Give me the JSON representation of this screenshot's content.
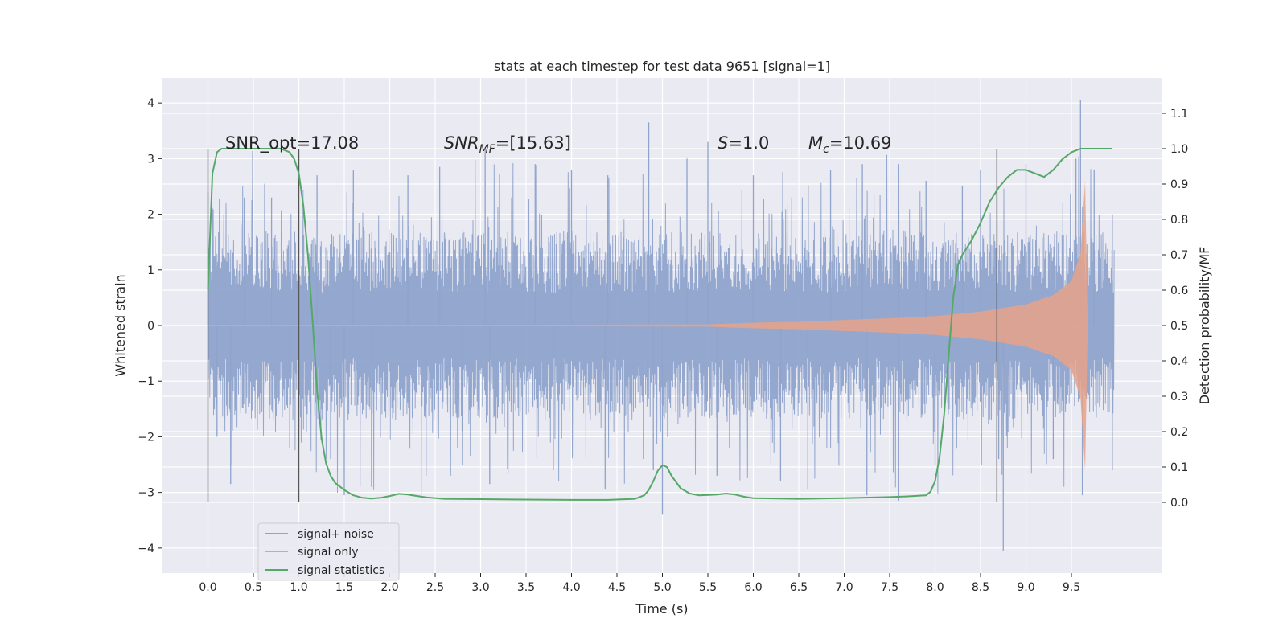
{
  "chart_data": {
    "type": "line",
    "title": "stats at each timestep for test data 9651 [signal=1]",
    "xlabel": "Time (s)",
    "ylabel": "Whitened strain",
    "y2label": "Detection probability/MF",
    "xlim": [
      -0.5,
      10.5
    ],
    "ylim": [
      -4.45,
      4.45
    ],
    "y2lim": [
      -0.2,
      1.2
    ],
    "xticks": [
      0.0,
      0.5,
      1.0,
      1.5,
      2.0,
      2.5,
      3.0,
      3.5,
      4.0,
      4.5,
      5.0,
      5.5,
      6.0,
      6.5,
      7.0,
      7.5,
      8.0,
      8.5,
      9.0,
      9.5
    ],
    "xtick_labels": [
      "0.0",
      "0.5",
      "1.0",
      "1.5",
      "2.0",
      "2.5",
      "3.0",
      "3.5",
      "4.0",
      "4.5",
      "5.0",
      "5.5",
      "6.0",
      "6.5",
      "7.0",
      "7.5",
      "8.0",
      "8.5",
      "9.0",
      "9.5"
    ],
    "yticks": [
      4,
      3,
      2,
      1,
      0,
      -1,
      -2,
      -3,
      -4
    ],
    "ytick_labels": [
      "4",
      "3",
      "2",
      "1",
      "0",
      "−1",
      "−2",
      "−3",
      "−4"
    ],
    "y2ticks": [
      1.1,
      1.0,
      0.9,
      0.8,
      0.7,
      0.6,
      0.5,
      0.4,
      0.3,
      0.2,
      0.1,
      0.0
    ],
    "y2tick_labels": [
      "1.1",
      "1.0",
      "0.9",
      "0.8",
      "0.7",
      "0.6",
      "0.5",
      "0.4",
      "0.3",
      "0.2",
      "0.1",
      "0.0"
    ],
    "grid": true,
    "legend_placement": "lower-left",
    "annotations": {
      "snr_opt": "SNR_opt=17.08",
      "snr_mf_base": "SNR",
      "snr_mf_sub": "MF",
      "snr_mf_value": "=[15.63]",
      "s_symbol": "S",
      "s_value": "=1.0",
      "mc_symbol": "M",
      "mc_sub": "c",
      "mc_value": "=10.69"
    },
    "vertical_markers": [
      {
        "x": 0.0,
        "y2_range": [
          0.0,
          1.0
        ]
      },
      {
        "x": 1.0,
        "y2_range": [
          0.0,
          1.0
        ]
      },
      {
        "x": 8.68,
        "y2_range": [
          0.0,
          1.0
        ]
      }
    ],
    "series": [
      {
        "name": "signal+ noise",
        "color": "#8fa3cb",
        "axis": "left",
        "x_range": [
          0.0,
          9.97
        ],
        "band": [
          -1.3,
          1.3
        ],
        "spikes": [
          {
            "x": 0.0,
            "y": 2.4
          },
          {
            "x": 0.1,
            "y": -2.0
          },
          {
            "x": 0.25,
            "y": -2.85
          },
          {
            "x": 0.4,
            "y": 2.3
          },
          {
            "x": 0.7,
            "y": 2.3
          },
          {
            "x": 0.9,
            "y": -2.2
          },
          {
            "x": 1.2,
            "y": 2.7
          },
          {
            "x": 1.35,
            "y": -2.4
          },
          {
            "x": 1.5,
            "y": -3.05
          },
          {
            "x": 1.6,
            "y": 2.8
          },
          {
            "x": 1.8,
            "y": -2.9
          },
          {
            "x": 2.2,
            "y": 2.7
          },
          {
            "x": 2.4,
            "y": -2.7
          },
          {
            "x": 2.55,
            "y": 2.85
          },
          {
            "x": 2.8,
            "y": -2.5
          },
          {
            "x": 3.05,
            "y": 3.2
          },
          {
            "x": 3.1,
            "y": -2.85
          },
          {
            "x": 3.6,
            "y": 2.9
          },
          {
            "x": 3.8,
            "y": -2.6
          },
          {
            "x": 4.0,
            "y": 2.8
          },
          {
            "x": 4.37,
            "y": -2.95
          },
          {
            "x": 4.4,
            "y": 2.7
          },
          {
            "x": 4.85,
            "y": 3.65
          },
          {
            "x": 4.9,
            "y": -2.6
          },
          {
            "x": 5.0,
            "y": -3.4
          },
          {
            "x": 5.27,
            "y": 3.0
          },
          {
            "x": 5.5,
            "y": 3.3
          },
          {
            "x": 5.6,
            "y": -2.7
          },
          {
            "x": 6.0,
            "y": 2.7
          },
          {
            "x": 6.3,
            "y": -2.8
          },
          {
            "x": 6.6,
            "y": -2.95
          },
          {
            "x": 6.85,
            "y": 2.8
          },
          {
            "x": 7.2,
            "y": 2.9
          },
          {
            "x": 7.25,
            "y": -3.05
          },
          {
            "x": 7.6,
            "y": 2.9
          },
          {
            "x": 7.6,
            "y": -3.15
          },
          {
            "x": 7.9,
            "y": 2.6
          },
          {
            "x": 8.0,
            "y": -2.5
          },
          {
            "x": 8.3,
            "y": 2.5
          },
          {
            "x": 8.5,
            "y": 2.8
          },
          {
            "x": 8.7,
            "y": -2.4
          },
          {
            "x": 8.75,
            "y": -4.05
          },
          {
            "x": 9.0,
            "y": 2.9
          },
          {
            "x": 9.3,
            "y": -2.4
          },
          {
            "x": 9.55,
            "y": 3.0
          },
          {
            "x": 9.6,
            "y": 4.05
          },
          {
            "x": 9.62,
            "y": -3.05
          },
          {
            "x": 9.75,
            "y": 2.8
          },
          {
            "x": 9.95,
            "y": 2.0
          },
          {
            "x": 9.95,
            "y": -2.6
          }
        ]
      },
      {
        "name": "signal only",
        "color": "#e6a288",
        "axis": "left",
        "envelope_x": [
          0.0,
          5.5,
          6.0,
          6.5,
          7.0,
          7.5,
          8.0,
          8.5,
          9.0,
          9.3,
          9.5,
          9.6,
          9.65,
          9.68
        ],
        "envelope_amp": [
          0.0,
          0.02,
          0.05,
          0.07,
          0.1,
          0.13,
          0.17,
          0.25,
          0.38,
          0.55,
          0.8,
          1.3,
          2.6,
          0.0
        ]
      },
      {
        "name": "signal statistics",
        "color": "#55a868",
        "axis": "right",
        "x": [
          0.0,
          0.05,
          0.1,
          0.15,
          0.2,
          0.3,
          0.5,
          0.7,
          0.8,
          0.9,
          0.95,
          1.0,
          1.05,
          1.1,
          1.15,
          1.2,
          1.25,
          1.3,
          1.35,
          1.4,
          1.5,
          1.6,
          1.7,
          1.8,
          1.9,
          2.0,
          2.1,
          2.2,
          2.4,
          2.6,
          3.0,
          3.5,
          4.0,
          4.4,
          4.7,
          4.8,
          4.85,
          4.9,
          4.95,
          5.0,
          5.05,
          5.1,
          5.2,
          5.3,
          5.4,
          5.6,
          5.7,
          5.8,
          5.9,
          6.0,
          6.5,
          7.0,
          7.5,
          7.7,
          7.9,
          7.95,
          8.0,
          8.05,
          8.1,
          8.15,
          8.2,
          8.25,
          8.3,
          8.4,
          8.5,
          8.6,
          8.7,
          8.8,
          8.9,
          9.0,
          9.1,
          9.2,
          9.3,
          9.4,
          9.5,
          9.6,
          9.8,
          9.95
        ],
        "y": [
          0.6,
          0.93,
          0.99,
          1.0,
          1.0,
          1.0,
          1.0,
          1.0,
          1.0,
          0.99,
          0.97,
          0.93,
          0.84,
          0.7,
          0.52,
          0.32,
          0.18,
          0.11,
          0.075,
          0.055,
          0.035,
          0.02,
          0.013,
          0.011,
          0.013,
          0.018,
          0.024,
          0.022,
          0.014,
          0.01,
          0.009,
          0.008,
          0.007,
          0.007,
          0.01,
          0.02,
          0.035,
          0.06,
          0.09,
          0.105,
          0.1,
          0.075,
          0.04,
          0.025,
          0.02,
          0.022,
          0.025,
          0.022,
          0.016,
          0.012,
          0.01,
          0.012,
          0.015,
          0.017,
          0.02,
          0.03,
          0.06,
          0.13,
          0.25,
          0.42,
          0.58,
          0.67,
          0.7,
          0.74,
          0.79,
          0.85,
          0.89,
          0.92,
          0.94,
          0.94,
          0.93,
          0.92,
          0.94,
          0.97,
          0.99,
          1.0,
          1.0,
          1.0
        ]
      }
    ]
  }
}
